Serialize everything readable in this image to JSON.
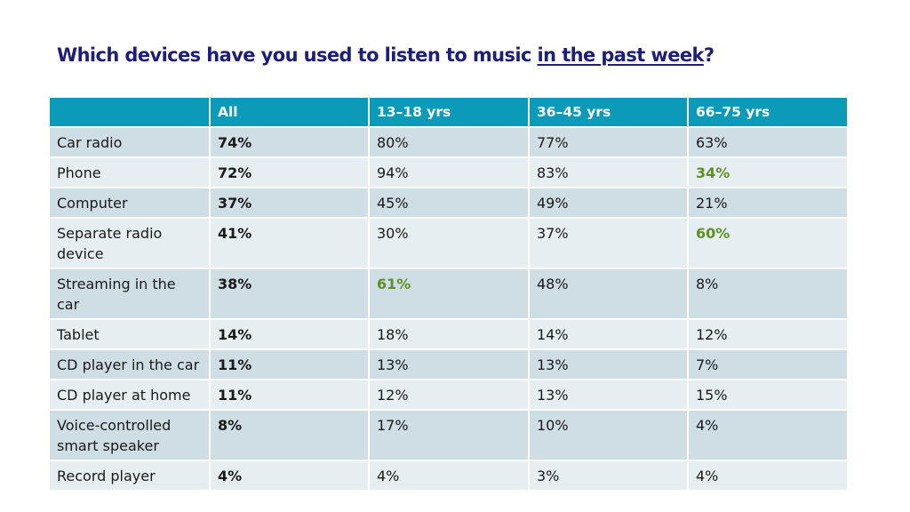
{
  "title": {
    "prefix": "Which devices have you used to listen to music ",
    "emphasis": "in the past week",
    "suffix": "?"
  },
  "colors": {
    "title": "#1e1e7a",
    "header_bg": "#0b9ab7",
    "row_dark": "#cfdde5",
    "row_light": "#e6eef2",
    "highlight": "#5f9122"
  },
  "chart_data": {
    "type": "table",
    "columns": [
      "",
      "All",
      "13–18 yrs",
      "36–45 yrs",
      "66–75 yrs"
    ],
    "rows": [
      {
        "device": "Car radio",
        "cells": [
          "74%",
          "80%",
          "77%",
          "63%"
        ],
        "highlight": [
          false,
          false,
          false,
          false
        ]
      },
      {
        "device": "Phone",
        "cells": [
          "72%",
          "94%",
          "83%",
          "34%"
        ],
        "highlight": [
          false,
          false,
          false,
          true
        ]
      },
      {
        "device": "Computer",
        "cells": [
          "37%",
          "45%",
          "49%",
          "21%"
        ],
        "highlight": [
          false,
          false,
          false,
          false
        ]
      },
      {
        "device": "Separate radio device",
        "cells": [
          "41%",
          "30%",
          "37%",
          "60%"
        ],
        "highlight": [
          false,
          false,
          false,
          true
        ]
      },
      {
        "device": "Streaming in the car",
        "cells": [
          "38%",
          "61%",
          "48%",
          "8%"
        ],
        "highlight": [
          false,
          true,
          false,
          false
        ]
      },
      {
        "device": "Tablet",
        "cells": [
          "14%",
          "18%",
          "14%",
          "12%"
        ],
        "highlight": [
          false,
          false,
          false,
          false
        ]
      },
      {
        "device": "CD player in the car",
        "cells": [
          "11%",
          "13%",
          "13%",
          "7%"
        ],
        "highlight": [
          false,
          false,
          false,
          false
        ]
      },
      {
        "device": "CD player at home",
        "cells": [
          "11%",
          "12%",
          "13%",
          "15%"
        ],
        "highlight": [
          false,
          false,
          false,
          false
        ]
      },
      {
        "device": "Voice-controlled smart speaker",
        "cells": [
          "8%",
          "17%",
          "10%",
          "4%"
        ],
        "highlight": [
          false,
          false,
          false,
          false
        ]
      },
      {
        "device": "Record player",
        "cells": [
          "4%",
          "4%",
          "3%",
          "4%"
        ],
        "highlight": [
          false,
          false,
          false,
          false
        ]
      }
    ]
  }
}
